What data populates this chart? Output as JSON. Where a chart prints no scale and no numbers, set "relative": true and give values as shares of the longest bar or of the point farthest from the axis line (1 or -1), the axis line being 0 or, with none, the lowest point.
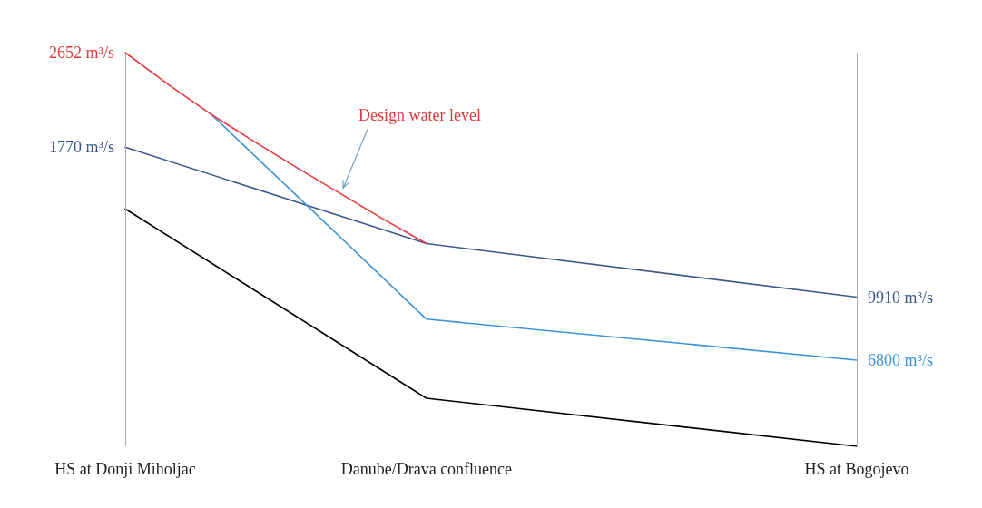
{
  "chart_data": {
    "type": "line",
    "relative": true,
    "grid": false,
    "marker": "none",
    "categories": [
      "HS at Donji Miholjac",
      null,
      null,
      null,
      null,
      null,
      null,
      "Danube/Drava confluence",
      null,
      null,
      null,
      null,
      null,
      null,
      null,
      null,
      null,
      "HS at Bogojevo"
    ],
    "series": [
      {
        "color": "#000000",
        "values": [
          0.603,
          null,
          null,
          null,
          null,
          null,
          null,
          0.122,
          null,
          null,
          null,
          null,
          null,
          null,
          null,
          null,
          null,
          0
        ]
      },
      {
        "color": "#3d5a8a",
        "values": [
          0.76,
          null,
          null,
          null,
          null,
          null,
          null,
          0.515,
          null,
          null,
          null,
          null,
          null,
          null,
          null,
          null,
          null,
          0.379
        ]
      },
      {
        "color": "#3d94d8",
        "values": [
          null,
          null,
          0.843,
          null,
          null,
          null,
          null,
          0.323,
          null,
          null,
          null,
          null,
          null,
          null,
          null,
          null,
          null,
          0.219
        ]
      },
      {
        "color": "#e0393e",
        "values": [
          1.0,
          0.919,
          0.843,
          0.774,
          0.707,
          0.642,
          0.577,
          0.515,
          null,
          null,
          null,
          null,
          null,
          null,
          null,
          null,
          null,
          null
        ]
      }
    ],
    "ref_lines": [
      {
        "axis": "x",
        "value": "HS at Donji Miholjac",
        "color": "#aaaaaa"
      },
      {
        "axis": "x",
        "value": "Danube/Drava confluence",
        "color": "#aaaaaa"
      },
      {
        "axis": "x",
        "value": "HS at Bogojevo",
        "color": "#aaaaaa"
      }
    ],
    "annotations": [
      "Design water level",
      {
        "text": "2652 m³/s",
        "x": "HS at Donji Miholjac",
        "y": 1.0
      },
      {
        "text": "1770 m³/s",
        "x": "HS at Donji Miholjac",
        "y": 0.76
      },
      {
        "text": "9910 m³/s",
        "x": "HS at Bogojevo",
        "y": 0.379
      },
      {
        "text": "6800 m³/s",
        "x": "HS at Bogojevo",
        "y": 0.219
      }
    ]
  }
}
